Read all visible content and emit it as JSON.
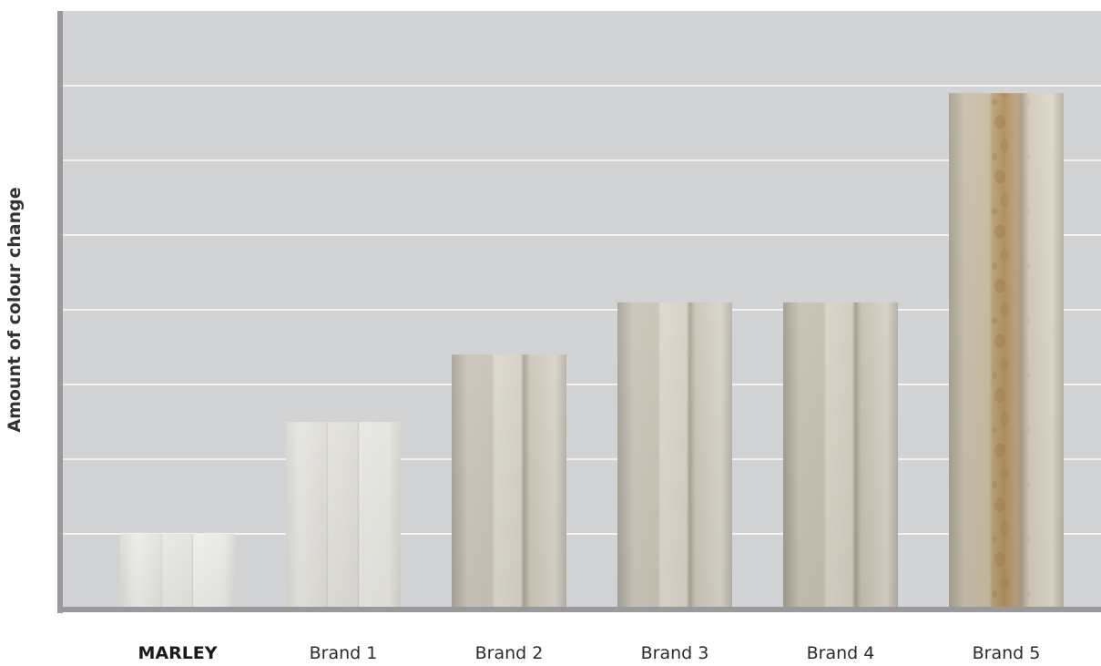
{
  "chart_data": {
    "type": "bar",
    "ylabel": "Amount of colour change",
    "xlabel": "",
    "categories": [
      "MARLEY",
      "Brand 1",
      "Brand 2",
      "Brand 3",
      "Brand 4",
      "Brand 5"
    ],
    "values": [
      1.0,
      2.5,
      3.4,
      4.1,
      4.1,
      6.9
    ],
    "ylim": [
      0,
      8
    ],
    "grid": true,
    "highlight_category": "MARLEY",
    "colors": {
      "plot_background": "#d2d3d5",
      "gridline": "#f2f2f3",
      "axis": "#9a9a9c",
      "bar_light": "#e6e6e2",
      "bar_mid": "#c3bdb0",
      "bar_stained": "#b59a6e"
    }
  }
}
